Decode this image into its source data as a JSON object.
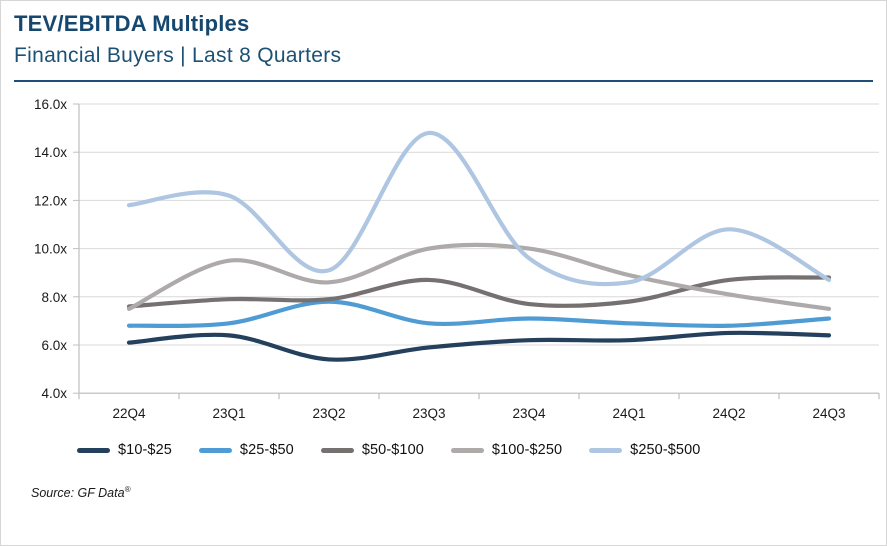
{
  "header": {
    "title": "TEV/EBITDA Multiples",
    "subtitle": "Financial Buyers | Last 8 Quarters"
  },
  "source": {
    "text": "Source: GF Data",
    "mark": "®"
  },
  "colors": {
    "title_blue": "#16486f",
    "divider_blue": "#1f4e79",
    "axis_line": "#bfbfbf",
    "gridline": "#d9d9d9",
    "tick_text": "#1a1a1a"
  },
  "chart_data": {
    "type": "line",
    "title": "TEV/EBITDA Multiples",
    "subtitle": "Financial Buyers | Last 8 Quarters",
    "line_style": "smooth",
    "grid": "horizontal",
    "legend_position": "bottom",
    "categories": [
      "22Q4",
      "23Q1",
      "23Q2",
      "23Q3",
      "23Q4",
      "24Q1",
      "24Q2",
      "24Q3"
    ],
    "ylim": [
      4.0,
      16.0
    ],
    "ytick_step": 2.0,
    "ytick_labels": [
      "16.0x",
      "14.0x",
      "12.0x",
      "10.0x",
      "8.0x",
      "6.0x",
      "4.0x"
    ],
    "series": [
      {
        "name": "$10-$25",
        "color": "#24405c",
        "values": [
          6.1,
          6.4,
          5.4,
          5.9,
          6.2,
          6.2,
          6.5,
          6.4
        ]
      },
      {
        "name": "$25-$50",
        "color": "#4f9cd5",
        "values": [
          6.8,
          6.9,
          7.8,
          6.9,
          7.1,
          6.9,
          6.8,
          7.1
        ]
      },
      {
        "name": "$50-$100",
        "color": "#767171",
        "values": [
          7.6,
          7.9,
          7.9,
          8.7,
          7.7,
          7.8,
          8.7,
          8.8
        ]
      },
      {
        "name": "$100-$250",
        "color": "#aeaaaa",
        "values": [
          7.5,
          9.5,
          8.6,
          10.0,
          10.0,
          8.9,
          8.1,
          7.5
        ]
      },
      {
        "name": "$250-$500",
        "color": "#aec6e2",
        "values": [
          11.8,
          12.2,
          9.1,
          14.8,
          9.6,
          8.6,
          10.8,
          8.7
        ]
      }
    ]
  }
}
